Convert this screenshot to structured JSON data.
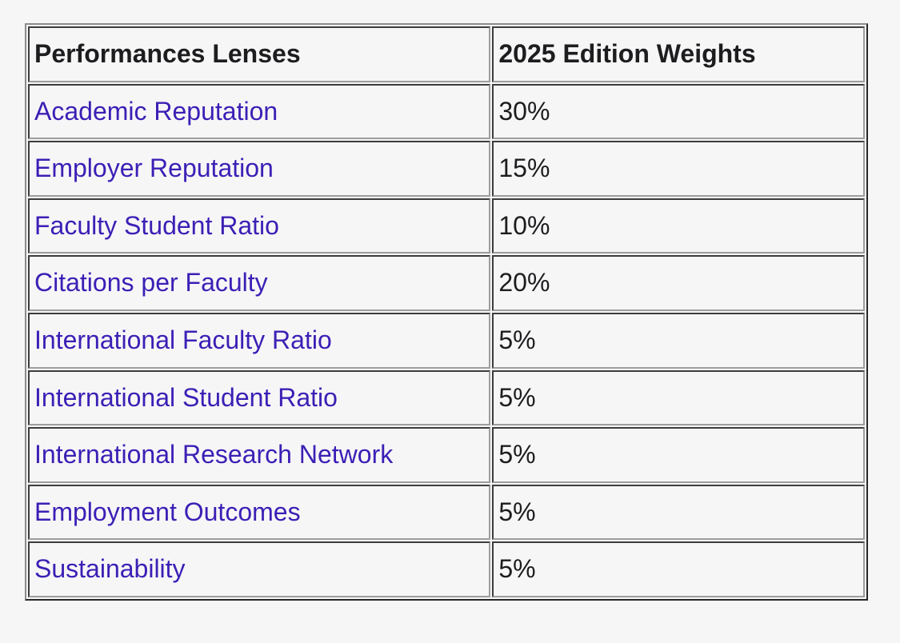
{
  "page": {
    "background_color": "#f6f6f7"
  },
  "table": {
    "columns": [
      {
        "label": "Performances Lenses"
      },
      {
        "label": "2025 Edition Weights"
      }
    ],
    "rows": [
      {
        "lens": "Academic Reputation",
        "weight": "30%"
      },
      {
        "lens": "Employer Reputation",
        "weight": "15%"
      },
      {
        "lens": "Faculty Student Ratio",
        "weight": "10%"
      },
      {
        "lens": "Citations per Faculty",
        "weight": "20%"
      },
      {
        "lens": "International Faculty Ratio",
        "weight": "5%"
      },
      {
        "lens": "International Student Ratio",
        "weight": "5%"
      },
      {
        "lens": "International Research Network",
        "weight": "5%"
      },
      {
        "lens": "Employment Outcomes",
        "weight": "5%"
      },
      {
        "lens": "Sustainability",
        "weight": "5%"
      }
    ],
    "colors": {
      "lens_link_purple": "#3c1fb5",
      "header_text": "#1d1d1f",
      "value_text": "#1d1d1f",
      "outer_border_light": "#8b8b8b",
      "outer_border_dark": "#262626",
      "cell_border_dark": "#3c3c3c",
      "cell_border_light": "#9d9d9d"
    }
  },
  "chart_data": {
    "type": "table",
    "columns": [
      "Performances Lenses",
      "2025 Edition Weights"
    ],
    "categories": [
      "Academic Reputation",
      "Employer Reputation",
      "Faculty Student Ratio",
      "Citations per Faculty",
      "International Faculty Ratio",
      "International Student Ratio",
      "International Research Network",
      "Employment Outcomes",
      "Sustainability"
    ],
    "values": [
      30,
      15,
      10,
      20,
      5,
      5,
      5,
      5,
      5
    ],
    "unit": "%"
  }
}
